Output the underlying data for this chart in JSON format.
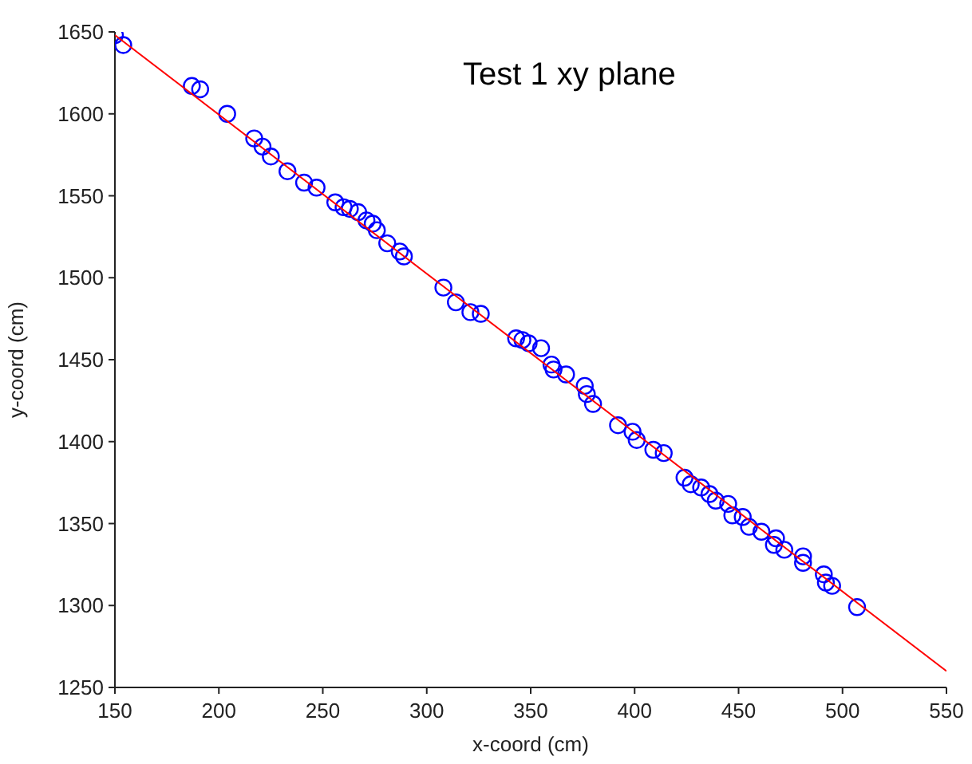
{
  "chart_data": {
    "type": "scatter",
    "title": "Test 1 xy plane",
    "xlabel": "x-coord (cm)",
    "ylabel": "y-coord (cm)",
    "xlim": [
      150,
      550
    ],
    "xticks": [
      150,
      200,
      250,
      300,
      350,
      400,
      450,
      500,
      550
    ],
    "ylim": [
      1250,
      1650
    ],
    "yticks": [
      1250,
      1300,
      1350,
      1400,
      1450,
      1500,
      1550,
      1600,
      1650
    ],
    "grid": false,
    "legend": false,
    "series": [
      {
        "type": "scatter",
        "color": "#0000ff",
        "marker": "circle",
        "x": [
          150,
          154,
          187,
          191,
          204,
          217,
          221,
          225,
          233,
          241,
          247,
          256,
          260,
          263,
          267,
          271,
          274,
          276,
          281,
          287,
          289,
          308,
          314,
          321,
          326,
          343,
          346,
          349,
          355,
          360,
          361,
          367,
          376,
          377,
          380,
          392,
          399,
          401,
          409,
          414,
          424,
          427,
          432,
          436,
          439,
          445,
          447,
          452,
          455,
          461,
          468,
          467,
          472,
          481,
          481,
          491,
          492,
          495,
          507
        ],
        "values": [
          1648,
          1642,
          1617,
          1615,
          1600,
          1585,
          1580,
          1574,
          1565,
          1558,
          1555,
          1546,
          1543,
          1542,
          1540,
          1535,
          1533,
          1529,
          1521,
          1516,
          1513,
          1494,
          1485,
          1479,
          1478,
          1463,
          1462,
          1460,
          1457,
          1447,
          1444,
          1441,
          1434,
          1429,
          1423,
          1410,
          1406,
          1401,
          1395,
          1393,
          1378,
          1374,
          1372,
          1368,
          1364,
          1362,
          1355,
          1354,
          1348,
          1345,
          1341,
          1337,
          1334,
          1330,
          1326,
          1319,
          1314,
          1312,
          1299
        ]
      },
      {
        "type": "line",
        "color": "#ff0000",
        "marker": "none",
        "line_style": "solid",
        "x": [
          150,
          550
        ],
        "values": [
          1648,
          1260
        ]
      }
    ]
  }
}
